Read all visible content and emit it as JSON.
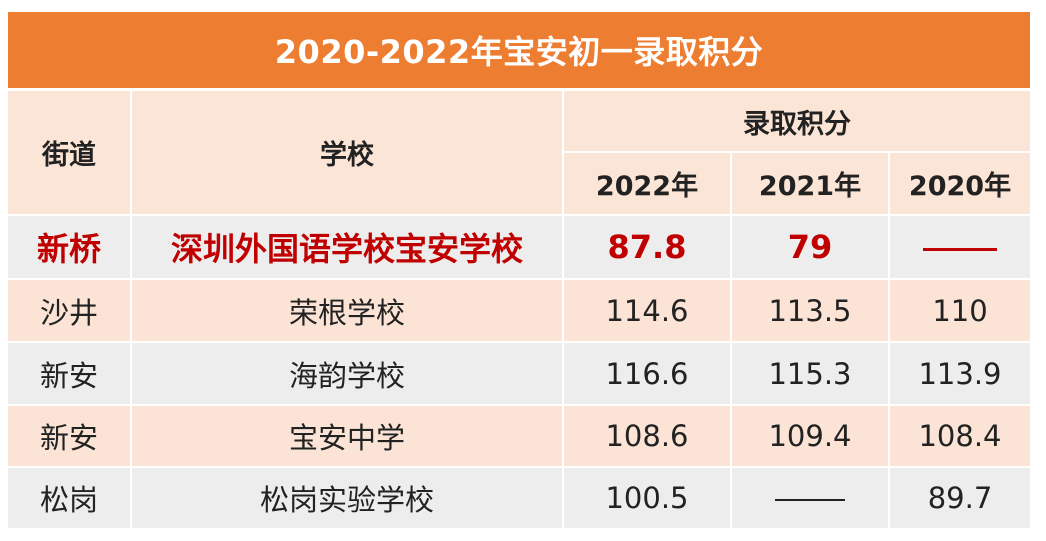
{
  "title": "2020-2022年宝安初一录取积分",
  "header": {
    "street": "街道",
    "school": "学校",
    "score_group": "录取积分",
    "years": [
      "2022年",
      "2021年",
      "2020年"
    ]
  },
  "rows": [
    {
      "street": "新桥",
      "school": "深圳外国语学校宝安学校",
      "y2022": "87.8",
      "y2021": "79",
      "y2020": "——",
      "highlight": true
    },
    {
      "street": "沙井",
      "school": "荣根学校",
      "y2022": "114.6",
      "y2021": "113.5",
      "y2020": "110"
    },
    {
      "street": "新安",
      "school": "海韵学校",
      "y2022": "116.6",
      "y2021": "115.3",
      "y2020": "113.9"
    },
    {
      "street": "新安",
      "school": "宝安中学",
      "y2022": "108.6",
      "y2021": "109.4",
      "y2020": "108.4"
    },
    {
      "street": "松岗",
      "school": "松岗实验学校",
      "y2022": "100.5",
      "y2021": "——",
      "y2020": "89.7"
    }
  ],
  "colors": {
    "title_bg": "#ed7d31",
    "highlight_text": "#c00000",
    "row_peach": "#fbe4d5",
    "row_gray": "#ededed"
  }
}
